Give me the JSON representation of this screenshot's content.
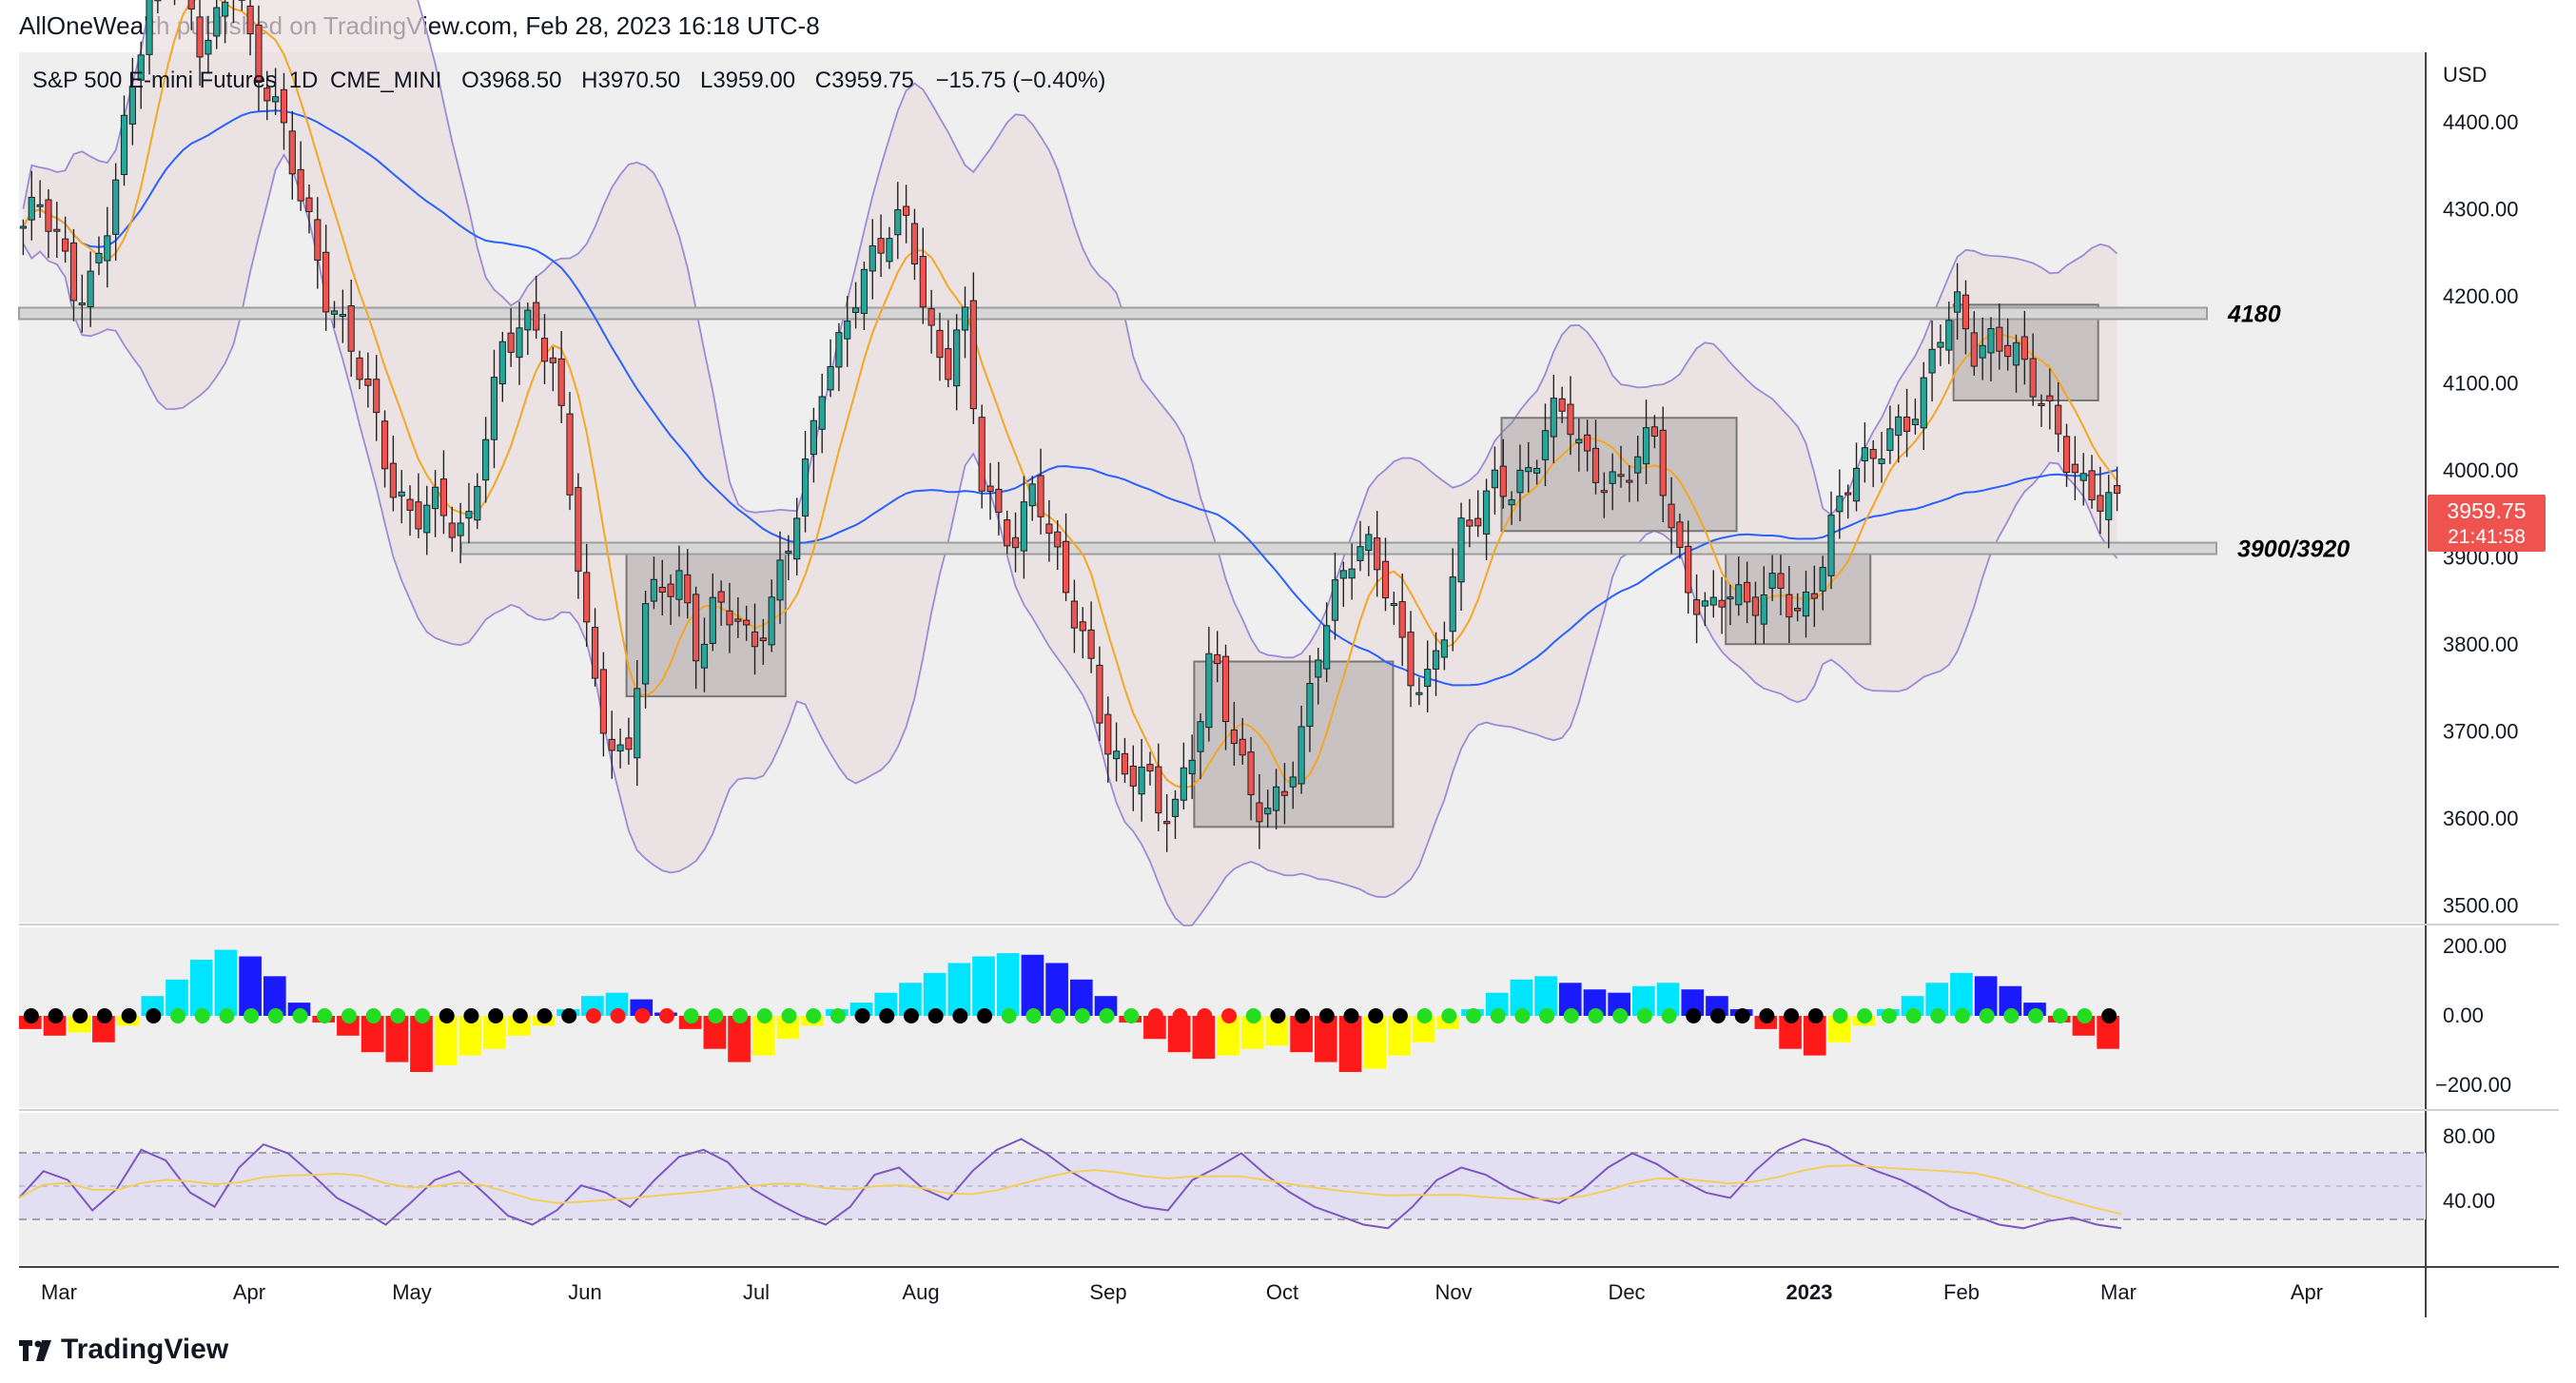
{
  "attribution": "AllOneWealth published on TradingView.com, Feb 28, 2023 16:18 UTC-8",
  "brand": "TradingView",
  "legend": {
    "symbol": "S&P 500 E-mini Futures",
    "interval": "1D",
    "exchange": "CME_MINI",
    "open_label": "O",
    "open": "3968.50",
    "high_label": "H",
    "high": "3970.50",
    "low_label": "L",
    "low": "3959.00",
    "close_label": "C",
    "close": "3959.75",
    "change": "−15.75 (−0.40%)"
  },
  "price_axis": {
    "currency": "USD",
    "ticks": [
      "4400.00",
      "4300.00",
      "4200.00",
      "4100.00",
      "4000.00",
      "3900.00",
      "3800.00",
      "3700.00",
      "3600.00",
      "3500.00"
    ],
    "last_price": "3959.75",
    "countdown": "21:41:58"
  },
  "time_axis": [
    "Mar",
    "Apr",
    "May",
    "Jun",
    "Jul",
    "Aug",
    "Sep",
    "Oct",
    "Nov",
    "Dec",
    "2023",
    "Feb",
    "Mar",
    "Apr"
  ],
  "levels": [
    {
      "label": "4180",
      "value": 4180
    },
    {
      "label": "3900/3920",
      "value": 3910
    }
  ],
  "osc_axis": [
    "200.00",
    "0.00",
    "−200.00"
  ],
  "rsi_axis": [
    "80.00",
    "40.00"
  ],
  "colors": {
    "up": "#26a69a",
    "down": "#ef5350",
    "bg": "#efefef",
    "bb_band": "#9c8bd6",
    "ema_fast": "#f5a623",
    "sma_slow": "#2962ff",
    "last_price_bg": "#ef5350"
  },
  "chart_data": [
    {
      "type": "candlestick",
      "instrument": "S&P 500 E-mini Futures",
      "interval": "1D",
      "x": [
        "Mar",
        "Apr",
        "May",
        "Jun",
        "Jul",
        "Aug",
        "Sep",
        "Oct",
        "Nov",
        "Dec",
        "2023",
        "Feb",
        "Mar",
        "Apr"
      ],
      "ylim": [
        3480,
        4480
      ],
      "close_path": [
        4280,
        4300,
        4250,
        4200,
        4230,
        4320,
        4420,
        4520,
        4600,
        4560,
        4500,
        4520,
        4560,
        4450,
        4430,
        4380,
        4300,
        4200,
        4150,
        4110,
        4050,
        3980,
        3950,
        3960,
        3930,
        3920,
        4050,
        4150,
        4170,
        4150,
        4100,
        3950,
        3780,
        3700,
        3650,
        3830,
        3860,
        3880,
        3800,
        3850,
        3830,
        3780,
        3830,
        3920,
        4000,
        4100,
        4130,
        4200,
        4250,
        4300,
        4290,
        4150,
        4100,
        4180,
        4000,
        3950,
        3920,
        3980,
        3900,
        3850,
        3800,
        3700,
        3640,
        3650,
        3600,
        3620,
        3700,
        3800,
        3700,
        3620,
        3600,
        3640,
        3700,
        3800,
        3850,
        3900,
        3910,
        3870,
        3780,
        3740,
        3800,
        3920,
        3960,
        4000,
        3980,
        3990,
        4050,
        4070,
        4020,
        4000,
        3980,
        4010,
        4030,
        3920,
        3870,
        3840,
        3860,
        3830,
        3850,
        3880,
        3840,
        3870,
        3930,
        3990,
        4010,
        4050,
        4060,
        4080,
        4150,
        4180,
        4140,
        4160,
        4150,
        4100,
        4060,
        4020,
        3990,
        3980,
        3960
      ]
    },
    {
      "type": "bar",
      "name": "",
      "ylim": [
        -260,
        260
      ],
      "values": [
        -40,
        -60,
        -50,
        -80,
        -30,
        60,
        110,
        170,
        200,
        180,
        120,
        40,
        -20,
        -60,
        -110,
        -140,
        -170,
        -150,
        -120,
        -100,
        -60,
        -30,
        20,
        60,
        70,
        50,
        10,
        -40,
        -100,
        -140,
        -120,
        -70,
        -30,
        20,
        40,
        70,
        100,
        130,
        160,
        180,
        190,
        185,
        160,
        110,
        60,
        -20,
        -70,
        -110,
        -130,
        -120,
        -100,
        -90,
        -110,
        -140,
        -170,
        -160,
        -120,
        -80,
        -40,
        20,
        70,
        110,
        120,
        100,
        80,
        70,
        90,
        100,
        80,
        60,
        20,
        -40,
        -100,
        -120,
        -80,
        -30,
        20,
        60,
        100,
        130,
        120,
        90,
        40,
        -20,
        -60,
        -100
      ]
    },
    {
      "type": "line",
      "name": "",
      "ylim": [
        10,
        90
      ],
      "values": [
        45,
        60,
        55,
        38,
        50,
        72,
        66,
        48,
        40,
        62,
        75,
        70,
        58,
        45,
        38,
        30,
        42,
        55,
        60,
        48,
        35,
        30,
        38,
        52,
        48,
        40,
        55,
        68,
        72,
        65,
        50,
        42,
        35,
        30,
        40,
        58,
        62,
        50,
        44,
        60,
        72,
        78,
        70,
        60,
        52,
        45,
        40,
        38,
        55,
        62,
        70,
        58,
        48,
        40,
        35,
        30,
        28,
        40,
        55,
        62,
        58,
        50,
        45,
        42,
        50,
        62,
        70,
        64,
        55,
        48,
        45,
        60,
        72,
        78,
        74,
        66,
        60,
        55,
        48,
        40,
        35,
        30,
        28,
        32,
        34,
        30,
        28
      ]
    }
  ]
}
